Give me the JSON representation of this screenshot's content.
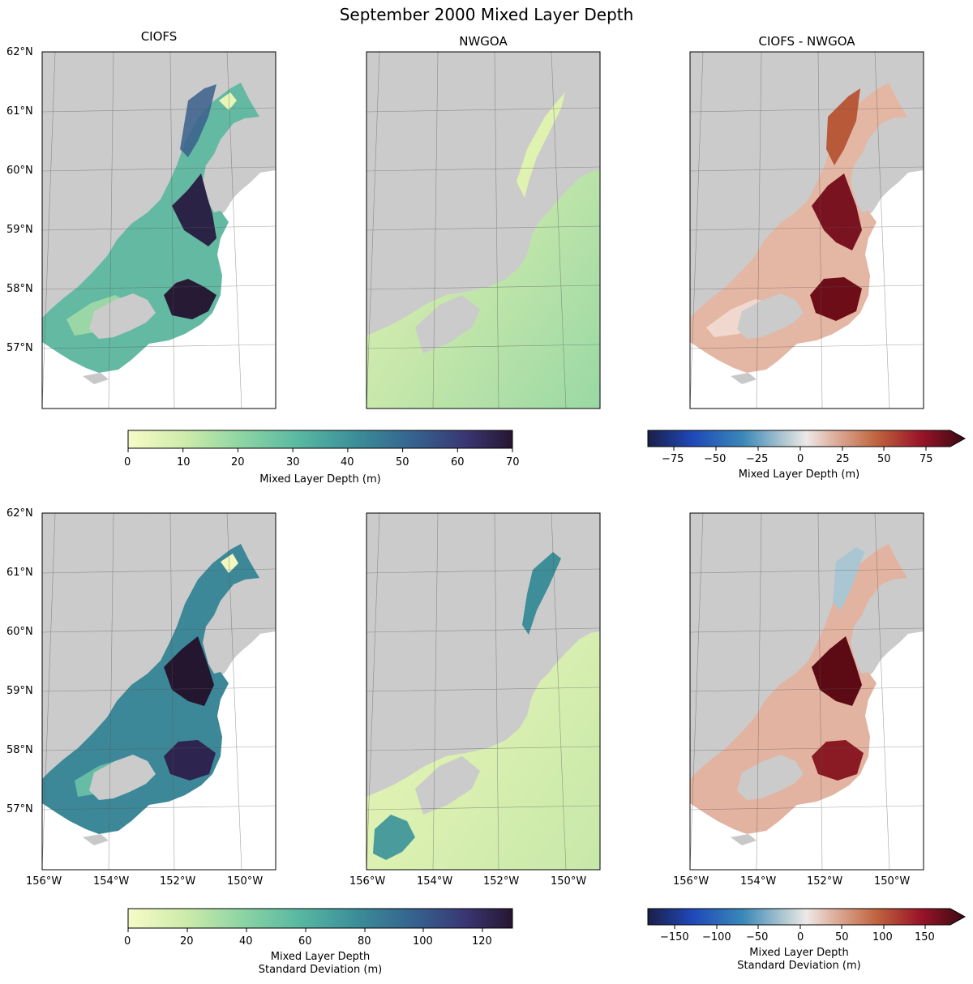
{
  "title": "September 2000 Mixed Layer Depth",
  "columns": [
    "CIOFS",
    "NWGOA",
    "CIOFS - NWGOA"
  ],
  "lat_ticks": [
    "62°N",
    "61°N",
    "60°N",
    "59°N",
    "58°N",
    "57°N"
  ],
  "lon_ticks": [
    "156°W",
    "154°W",
    "152°W",
    "150°W"
  ],
  "colorbars": {
    "mean_abs": {
      "label": "Mixed Layer Depth (m)",
      "ticks": [
        "0",
        "10",
        "20",
        "30",
        "40",
        "50",
        "60",
        "70"
      ],
      "range": [
        0,
        70
      ]
    },
    "mean_diff": {
      "label": "Mixed Layer Depth (m)",
      "ticks": [
        "−75",
        "−50",
        "−25",
        "0",
        "25",
        "50",
        "75"
      ],
      "range": [
        -90,
        90
      ]
    },
    "std_abs": {
      "label_line1": "Mixed Layer Depth",
      "label_line2": "Standard Deviation (m)",
      "ticks": [
        "0",
        "20",
        "40",
        "60",
        "80",
        "100",
        "120"
      ],
      "range": [
        0,
        130
      ]
    },
    "std_diff": {
      "label_line1": "Mixed Layer Depth",
      "label_line2": "Standard Deviation (m)",
      "ticks": [
        "−150",
        "−100",
        "−50",
        "0",
        "50",
        "100",
        "150"
      ],
      "range": [
        -180,
        180
      ]
    }
  },
  "colors": {
    "land": "#cbcbcb",
    "deep_palette": "#2a1a35",
    "shallow_palette": "#f5f9c5",
    "diff_negative": "#1b2a5c",
    "diff_positive": "#5a0a12"
  }
}
